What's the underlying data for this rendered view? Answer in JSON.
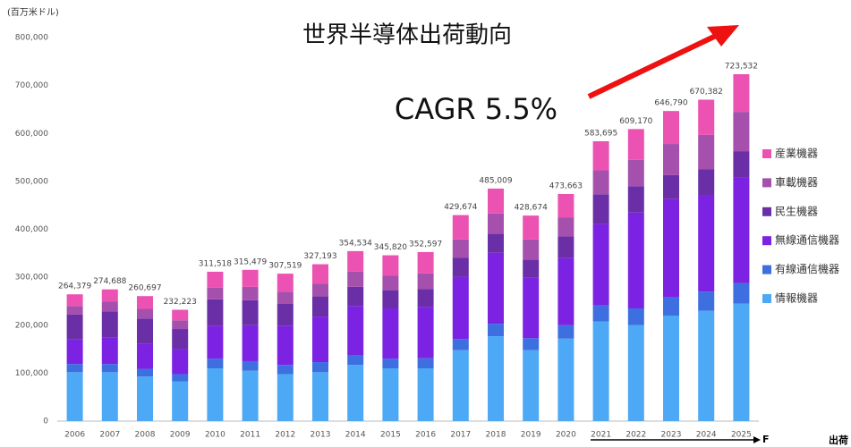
{
  "chart_data": {
    "type": "stacked_bar",
    "title": "世界半導体出荷動向",
    "unit_label": "(百万米ドル)",
    "annotation": "CAGR 5.5%",
    "forecast_label": "F",
    "corner_label": "出荷",
    "categories": [
      "2006",
      "2007",
      "2008",
      "2009",
      "2010",
      "2011",
      "2012",
      "2013",
      "2014",
      "2015",
      "2016",
      "2017",
      "2018",
      "2019",
      "2020",
      "2021",
      "2022",
      "2023",
      "2024",
      "2025"
    ],
    "series": [
      {
        "name": "情報機器",
        "color": "#4da9f5",
        "values": [
          102000,
          102000,
          93000,
          83000,
          110000,
          105000,
          98000,
          102000,
          117000,
          110000,
          110000,
          148000,
          177000,
          148000,
          172000,
          208000,
          200000,
          220000,
          230000,
          245000
        ]
      },
      {
        "name": "有線通信機器",
        "color": "#3d6fe0",
        "values": [
          17000,
          17000,
          16000,
          15000,
          20000,
          20000,
          19000,
          21000,
          21000,
          20000,
          21000,
          23000,
          26000,
          25000,
          28000,
          33000,
          35000,
          38000,
          40000,
          43000
        ]
      },
      {
        "name": "無線通信機器",
        "color": "#7b22e3",
        "values": [
          51000,
          55000,
          52000,
          52000,
          68000,
          75000,
          82000,
          95000,
          102000,
          105000,
          107000,
          130000,
          148000,
          126000,
          140000,
          170000,
          200000,
          205000,
          200000,
          220000
        ]
      },
      {
        "name": "民生機器",
        "color": "#6a2fa6",
        "values": [
          52000,
          55000,
          53000,
          42000,
          56000,
          52000,
          46000,
          42000,
          40000,
          38000,
          37000,
          40000,
          40000,
          38000,
          45000,
          62000,
          55000,
          50000,
          55000,
          55000
        ]
      },
      {
        "name": "車載機器",
        "color": "#a550ad",
        "values": [
          18000,
          20000,
          20000,
          18000,
          24000,
          28000,
          25000,
          27000,
          32000,
          30000,
          33000,
          38000,
          42000,
          42000,
          40000,
          50000,
          55000,
          65000,
          72000,
          82000
        ]
      },
      {
        "name": "産業機器",
        "color": "#ec52b2",
        "values": [
          24379,
          25688,
          26697,
          22223,
          33518,
          35479,
          37519,
          40193,
          42534,
          42820,
          44597,
          50674,
          52009,
          49674,
          48663,
          60695,
          64170,
          68790,
          73382,
          78532
        ]
      }
    ],
    "totals": [
      264379,
      274688,
      260697,
      232223,
      311518,
      315479,
      307519,
      327193,
      354534,
      345820,
      352597,
      429674,
      485009,
      428674,
      473663,
      583695,
      609170,
      646790,
      670382,
      723532
    ],
    "total_labels": [
      "264,379",
      "274,688",
      "260,697",
      "232,223",
      "311,518",
      "315,479",
      "307,519",
      "327,193",
      "354,534",
      "345,820",
      "352,597",
      "429,674",
      "485,009",
      "428,674",
      "473,663",
      "583,695",
      "609,170",
      "646,790",
      "670,382",
      "723,532"
    ],
    "ylim": [
      0,
      800000
    ],
    "yticks": [
      0,
      {
        "value": 100000,
        "label": "100,000"
      },
      {
        "value": 200000,
        "label": "200,000"
      },
      {
        "value": 300000,
        "label": "300,000"
      },
      {
        "value": 400000,
        "label": "400,000"
      },
      {
        "value": 500000,
        "label": "500,000"
      },
      {
        "value": 600000,
        "label": "600,000"
      },
      {
        "value": 700000,
        "label": "700,000"
      },
      {
        "value": 800000,
        "label": "800,000"
      }
    ],
    "grid": false
  }
}
